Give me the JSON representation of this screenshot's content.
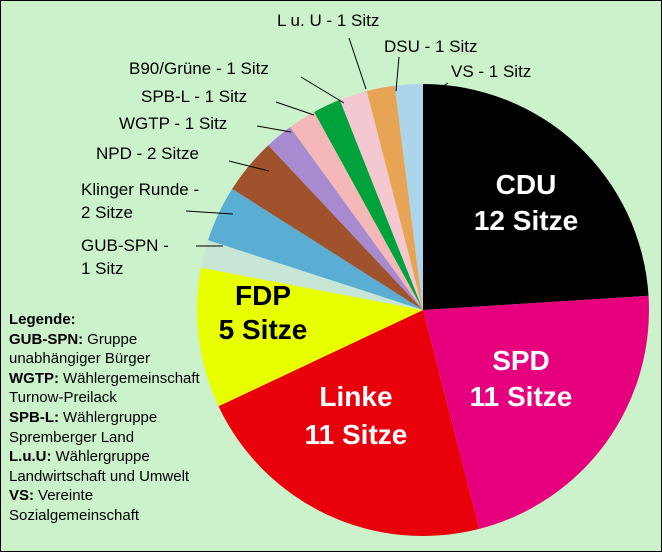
{
  "chart_data": {
    "type": "pie",
    "values": [
      12,
      11,
      11,
      5,
      1,
      2,
      2,
      1,
      1,
      1,
      1,
      1,
      1
    ],
    "value_labels": [
      "CDU\n12 Sitze",
      "SPD\n11 Sitze",
      "Linke\n11 Sitze",
      "FDP\n5 Sitze",
      "GUB-SPN -\n1 Sitz",
      "Klinger Runde -\n2 Sitze",
      "NPD - 2 Sitze",
      "WGTP - 1 Sitz",
      "SPB-L - 1 Sitz",
      "B90/Grüne - 1 Sitz",
      "L u. U - 1 Sitz",
      "DSU - 1 Sitz",
      "VS - 1 Sitz"
    ],
    "colors": [
      "#000000",
      "#e6007e",
      "#e8000b",
      "#e8ff00",
      "#c8e6d6",
      "#5aaed4",
      "#a0522d",
      "#a88ad0",
      "#f4b8b8",
      "#00a23c",
      "#f4c8d0",
      "#e8a455",
      "#acd4ea"
    ],
    "label_colors": [
      "#ffffff",
      "#ffffff",
      "#ffffff",
      "#000000",
      "#000000",
      "#000000",
      "#000000",
      "#000000",
      "#000000",
      "#000000",
      "#000000",
      "#000000",
      "#000000"
    ],
    "legend_notes": {
      "title": "Legende:",
      "entries": [
        {
          "abbr": "GUB-SPN:",
          "text": "Gruppe unabhängiger Bürger"
        },
        {
          "abbr": "WGTP:",
          "text": "Wählergemeinschaft Turnow-Preilack"
        },
        {
          "abbr": "SPB-L:",
          "text": "Wählergruppe Spremberger Land"
        },
        {
          "abbr": "L.u.U:",
          "text": "Wählergruppe Landwirtschaft und Umwelt"
        },
        {
          "abbr": "VS:",
          "text": "Vereinte Sozialgemeinschaft"
        }
      ]
    }
  }
}
